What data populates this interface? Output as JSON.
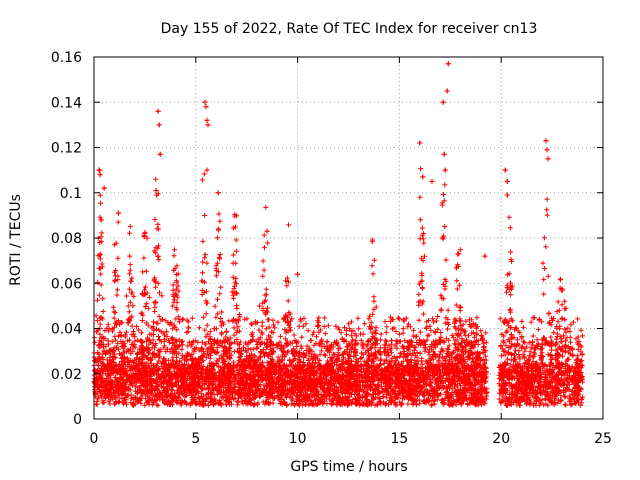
{
  "chart_data": {
    "type": "scatter",
    "title": "Day 155 of 2022, Rate Of TEC Index for receiver cn13",
    "xlabel": "GPS time / hours",
    "ylabel": "ROTI / TECUs",
    "xlim": [
      0,
      25
    ],
    "ylim": [
      0,
      0.16
    ],
    "x_ticks": [
      0,
      5,
      10,
      15,
      20,
      25
    ],
    "y_ticks": [
      0,
      0.02,
      0.04,
      0.06,
      0.08,
      0.1,
      0.12,
      0.14,
      0.16
    ],
    "x_tick_labels": [
      "0",
      "5",
      "10",
      "15",
      "20",
      "25"
    ],
    "y_tick_labels": [
      "0",
      "0.02",
      "0.04",
      "0.06",
      "0.08",
      "0.1",
      "0.12",
      "0.14",
      "0.16"
    ],
    "grid": true,
    "marker": "plus",
    "color": "#ff0000",
    "data_gap_hours": [
      19.3,
      19.9
    ],
    "notable_points": [
      {
        "x": 0.25,
        "y": 0.11
      },
      {
        "x": 0.3,
        "y": 0.108
      },
      {
        "x": 0.5,
        "y": 0.102
      },
      {
        "x": 1.2,
        "y": 0.091
      },
      {
        "x": 3.05,
        "y": 0.101
      },
      {
        "x": 3.15,
        "y": 0.136
      },
      {
        "x": 3.2,
        "y": 0.13
      },
      {
        "x": 3.25,
        "y": 0.117
      },
      {
        "x": 5.45,
        "y": 0.14
      },
      {
        "x": 5.5,
        "y": 0.138
      },
      {
        "x": 5.55,
        "y": 0.132
      },
      {
        "x": 5.6,
        "y": 0.13
      },
      {
        "x": 5.55,
        "y": 0.11
      },
      {
        "x": 6.1,
        "y": 0.1
      },
      {
        "x": 8.5,
        "y": 0.083
      },
      {
        "x": 10.0,
        "y": 0.064
      },
      {
        "x": 16.0,
        "y": 0.122
      },
      {
        "x": 16.15,
        "y": 0.107
      },
      {
        "x": 16.6,
        "y": 0.105
      },
      {
        "x": 17.15,
        "y": 0.14
      },
      {
        "x": 17.2,
        "y": 0.117
      },
      {
        "x": 17.25,
        "y": 0.11
      },
      {
        "x": 17.35,
        "y": 0.145
      },
      {
        "x": 17.4,
        "y": 0.157
      },
      {
        "x": 19.2,
        "y": 0.072
      },
      {
        "x": 20.2,
        "y": 0.11
      },
      {
        "x": 20.3,
        "y": 0.105
      },
      {
        "x": 20.3,
        "y": 0.099
      },
      {
        "x": 22.2,
        "y": 0.123
      },
      {
        "x": 22.25,
        "y": 0.119
      },
      {
        "x": 22.3,
        "y": 0.115
      }
    ],
    "spikes": [
      {
        "x": 0.3,
        "height": 0.085
      },
      {
        "x": 1.1,
        "height": 0.075
      },
      {
        "x": 1.8,
        "height": 0.07
      },
      {
        "x": 2.5,
        "height": 0.075
      },
      {
        "x": 3.1,
        "height": 0.095
      },
      {
        "x": 4.0,
        "height": 0.06
      },
      {
        "x": 5.4,
        "height": 0.09
      },
      {
        "x": 6.1,
        "height": 0.085
      },
      {
        "x": 6.9,
        "height": 0.08
      },
      {
        "x": 8.4,
        "height": 0.065
      },
      {
        "x": 9.5,
        "height": 0.062
      },
      {
        "x": 13.7,
        "height": 0.055
      },
      {
        "x": 16.1,
        "height": 0.09
      },
      {
        "x": 17.2,
        "height": 0.1
      },
      {
        "x": 17.9,
        "height": 0.06
      },
      {
        "x": 20.4,
        "height": 0.083
      },
      {
        "x": 22.2,
        "height": 0.078
      },
      {
        "x": 23.0,
        "height": 0.052
      }
    ]
  }
}
